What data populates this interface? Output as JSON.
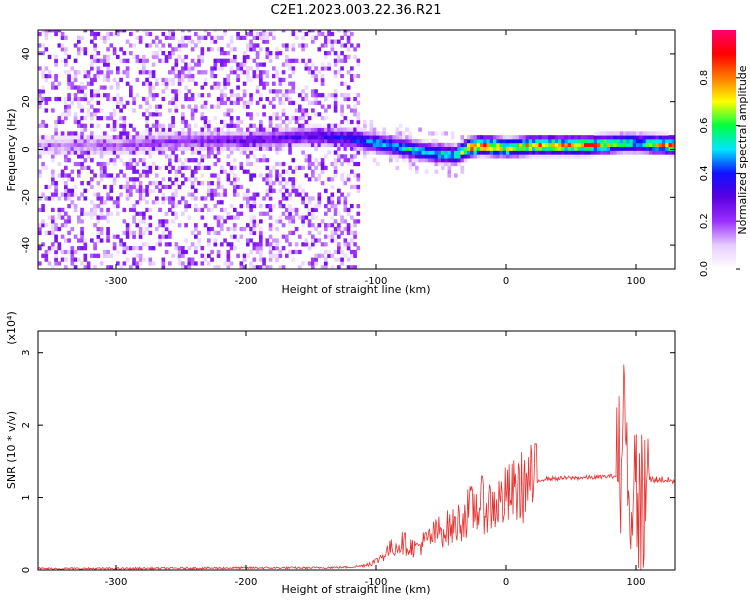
{
  "title": "C2E1.2023.003.22.36.R21",
  "chart_data": [
    {
      "type": "heatmap",
      "xlabel": "Height of straight line (km)",
      "ylabel": "Frequency (Hz)",
      "xlim": [
        -360,
        130
      ],
      "ylim": [
        -50,
        50
      ],
      "xticks": [
        -300,
        -200,
        -100,
        0,
        100
      ],
      "xtick_labels": [
        "-300",
        "-200",
        "-100",
        "0",
        "100"
      ],
      "yticks": [
        -40,
        -20,
        0,
        20,
        40
      ],
      "ytick_labels": [
        "-40",
        "-20",
        "0",
        "20",
        "40"
      ],
      "colorbar": {
        "label": "Normalized spectral amplitude",
        "range": [
          0,
          1
        ],
        "ticks": [
          0,
          0.2,
          0.4,
          0.6,
          0.8
        ],
        "tick_labels": [
          "0.0",
          "0.2",
          "0.4",
          "0.6",
          "0.8"
        ],
        "colors": [
          "#ffffff",
          "#e6ccff",
          "#9b30ff",
          "#5a00e0",
          "#1010ff",
          "#00e5ff",
          "#00ff40",
          "#ffff00",
          "#ff7a00",
          "#ff0000",
          "#ff0070"
        ]
      },
      "main_line": {
        "x": [
          -360,
          -300,
          -250,
          -200,
          -150,
          -120,
          -100,
          -80,
          -60,
          -40,
          -30,
          -20,
          0,
          20,
          60,
          90,
          100,
          130
        ],
        "frequency": [
          1,
          1,
          3,
          3,
          5,
          4,
          2,
          0,
          -2,
          -3,
          0,
          1,
          0,
          1,
          1,
          2,
          2,
          1
        ],
        "amplitude": [
          0.15,
          0.2,
          0.25,
          0.3,
          0.35,
          0.45,
          0.55,
          0.6,
          0.6,
          0.65,
          0.9,
          0.95,
          0.8,
          0.85,
          0.9,
          0.7,
          0.6,
          0.95
        ]
      },
      "noise_region_x": [
        -360,
        -115
      ],
      "grid": false
    },
    {
      "type": "line",
      "xlabel": "Height of straight line (km)",
      "ylabel": "SNR (10 * v/v)",
      "multiplier_label": "(x10⁴)",
      "xlim": [
        -360,
        130
      ],
      "ylim": [
        0,
        3.3
      ],
      "xticks": [
        -300,
        -200,
        -100,
        0,
        100
      ],
      "xtick_labels": [
        "-300",
        "-200",
        "-100",
        "0",
        "100"
      ],
      "yticks": [
        0,
        1,
        2,
        3
      ],
      "ytick_labels": [
        "0",
        "1",
        "2",
        "3"
      ],
      "color": "#e8312f",
      "series": [
        {
          "x": [
            -360,
            -300,
            -200,
            -150,
            -120,
            -110,
            -100,
            -90,
            -80,
            -70,
            -60,
            -50,
            -40,
            -30,
            -20,
            -10,
            0,
            10,
            20,
            30,
            50,
            70,
            85,
            90,
            95,
            100,
            105,
            110,
            120,
            130
          ],
          "values": [
            0.02,
            0.02,
            0.03,
            0.03,
            0.04,
            0.06,
            0.12,
            0.28,
            0.38,
            0.3,
            0.42,
            0.55,
            0.6,
            0.78,
            0.9,
            0.88,
            1.0,
            1.12,
            1.22,
            1.26,
            1.27,
            1.28,
            1.3,
            1.6,
            1.2,
            1.0,
            0.9,
            1.25,
            1.25,
            1.22
          ]
        }
      ],
      "grid": false
    }
  ]
}
